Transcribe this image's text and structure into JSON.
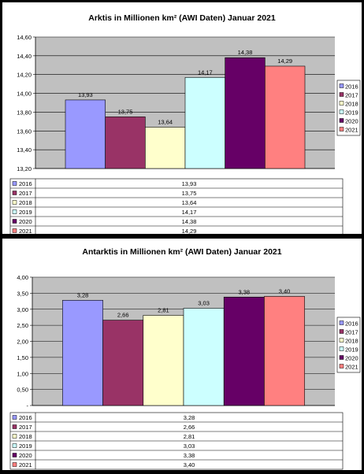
{
  "chart_data": [
    {
      "type": "bar",
      "title": "Arktis in Millionen km² (AWI Daten) Januar 2021",
      "categories": [
        ""
      ],
      "ylim": [
        13.2,
        14.6
      ],
      "yticks": [
        "13,20",
        "13,40",
        "13,60",
        "13,80",
        "14,00",
        "14,20",
        "14,40",
        "14,60"
      ],
      "grid": true,
      "legend": "right",
      "data_table": true,
      "series": [
        {
          "name": "2016",
          "value": 13.93,
          "label": "13,93",
          "color": "#9999ff"
        },
        {
          "name": "2017",
          "value": 13.75,
          "label": "13,75",
          "color": "#993366"
        },
        {
          "name": "2018",
          "value": 13.64,
          "label": "13,64",
          "color": "#ffffcc"
        },
        {
          "name": "2019",
          "value": 14.17,
          "label": "14,17",
          "color": "#ccffff"
        },
        {
          "name": "2020",
          "value": 14.38,
          "label": "14,38",
          "color": "#660066"
        },
        {
          "name": "2021",
          "value": 14.29,
          "label": "14,29",
          "color": "#ff8080"
        }
      ]
    },
    {
      "type": "bar",
      "title": "Antarktis in Millionen km² (AWI Daten) Januar 2021",
      "categories": [
        ""
      ],
      "ylim": [
        0,
        4
      ],
      "yticks": [
        "-",
        "0,50",
        "1,00",
        "1,50",
        "2,00",
        "2,50",
        "3,00",
        "3,50",
        "4,00"
      ],
      "grid": true,
      "legend": "right",
      "data_table": true,
      "series": [
        {
          "name": "2016",
          "value": 3.28,
          "label": "3,28",
          "color": "#9999ff"
        },
        {
          "name": "2017",
          "value": 2.66,
          "label": "2,66",
          "color": "#993366"
        },
        {
          "name": "2018",
          "value": 2.81,
          "label": "2,81",
          "color": "#ffffcc"
        },
        {
          "name": "2019",
          "value": 3.03,
          "label": "3,03",
          "color": "#ccffff"
        },
        {
          "name": "2020",
          "value": 3.38,
          "label": "3,38",
          "color": "#660066"
        },
        {
          "name": "2021",
          "value": 3.4,
          "label": "3,40",
          "color": "#ff8080"
        }
      ]
    }
  ]
}
